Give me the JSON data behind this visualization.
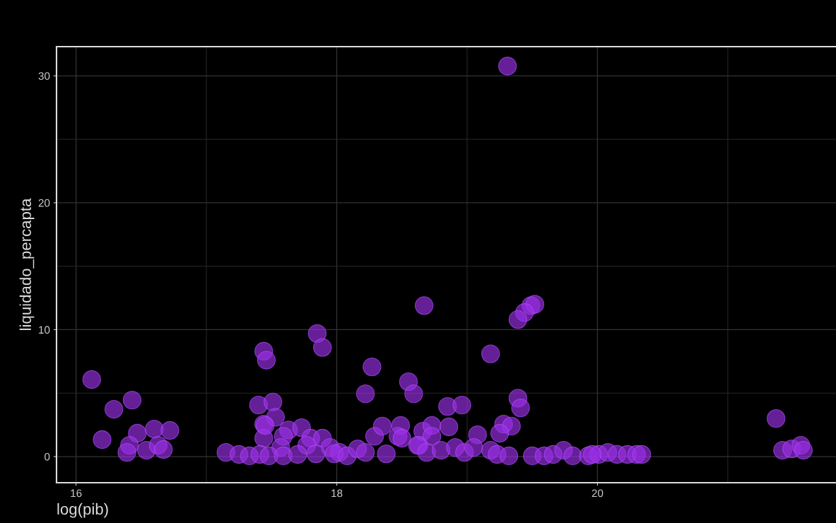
{
  "chart_data": {
    "type": "scatter",
    "xlabel": "log(pib)",
    "ylabel": "liquidado_percapta",
    "x": [
      16.12,
      16.29,
      16.43,
      16.2,
      16.47,
      16.6,
      16.72,
      16.41,
      16.39,
      16.54,
      16.63,
      16.67,
      17.44,
      17.46,
      17.4,
      17.44,
      17.15,
      17.25,
      17.33,
      17.44,
      17.85,
      17.89,
      18.27,
      18.22,
      18.55,
      18.59,
      17.51,
      17.53,
      17.45,
      17.63,
      17.73,
      17.59,
      17.8,
      17.89,
      17.57,
      17.77,
      17.95,
      18.02,
      17.41,
      17.48,
      17.59,
      17.7,
      17.84,
      17.98,
      18.08,
      18.16,
      18.22,
      18.29,
      18.35,
      18.38,
      18.49,
      18.47,
      18.63,
      18.66,
      18.67,
      19.18,
      18.85,
      18.96,
      19.39,
      19.41,
      19.28,
      19.34,
      19.25,
      18.73,
      18.86,
      18.73,
      19.08,
      18.5,
      18.62,
      18.69,
      18.8,
      18.91,
      18.98,
      19.05,
      19.18,
      19.23,
      19.32,
      19.5,
      19.59,
      19.66,
      19.74,
      19.81,
      19.93,
      20.01,
      19.49,
      19.52,
      19.44,
      19.39,
      19.31,
      21.37,
      21.42,
      21.49,
      21.56,
      21.58,
      20.08,
      20.15,
      20.23,
      20.3,
      20.34,
      19.96
    ],
    "values": [
      6.07,
      3.73,
      4.45,
      1.34,
      1.84,
      2.17,
      2.06,
      0.89,
      0.33,
      0.5,
      0.89,
      0.56,
      8.3,
      7.6,
      4.06,
      2.56,
      0.33,
      0.17,
      0.06,
      1.45,
      9.7,
      8.6,
      7.07,
      4.95,
      5.9,
      4.95,
      4.3,
      3.1,
      2.45,
      2.1,
      2.28,
      1.6,
      1.45,
      1.45,
      0.72,
      0.89,
      0.72,
      0.33,
      0.17,
      0.06,
      0.06,
      0.17,
      0.22,
      0.22,
      0.06,
      0.61,
      0.33,
      1.6,
      2.4,
      0.22,
      2.45,
      1.6,
      0.89,
      2.0,
      11.9,
      8.1,
      3.95,
      4.06,
      4.6,
      3.84,
      2.56,
      2.4,
      1.84,
      2.45,
      2.34,
      1.6,
      1.72,
      1.45,
      0.89,
      0.33,
      0.5,
      0.72,
      0.33,
      0.72,
      0.5,
      0.17,
      0.06,
      0.06,
      0.06,
      0.17,
      0.5,
      0.06,
      0.06,
      0.17,
      11.9,
      12.0,
      11.35,
      10.8,
      30.77,
      3.0,
      0.5,
      0.61,
      0.89,
      0.5,
      0.33,
      0.17,
      0.17,
      0.17,
      0.17,
      0.17
    ],
    "color": "#9b30e8",
    "marker": "circle",
    "xlim": [
      15.85,
      21.83
    ],
    "ylim": [
      -2.06,
      32.3
    ],
    "xticks": [
      16,
      18,
      20
    ],
    "yticks": [
      0,
      10,
      20,
      30
    ],
    "grid": true
  }
}
